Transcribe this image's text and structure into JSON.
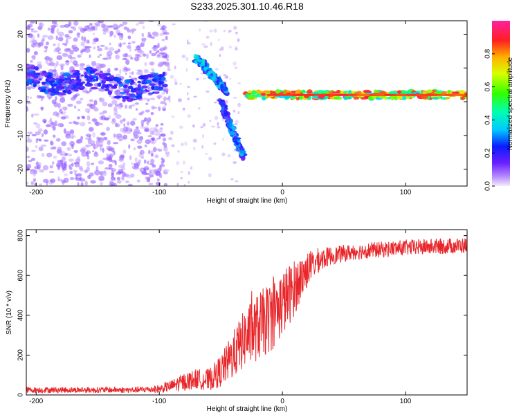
{
  "chart_data": [
    {
      "type": "heatmap",
      "title": "S233.2025.301.10.46.R18",
      "xlabel": "Height of straight line (km)",
      "ylabel": "Frequency (Hz)",
      "xlim": [
        -208,
        150
      ],
      "ylim": [
        -25,
        24
      ],
      "xticks": [
        -200,
        -100,
        0,
        100
      ],
      "yticks": [
        20,
        10,
        0,
        -10,
        -20
      ],
      "colorbar": {
        "label": "Normalized spectral amplitude",
        "range": [
          0,
          1
        ],
        "ticks": [
          "0.0",
          "0.2",
          "0.4",
          "0.6",
          "0.8"
        ]
      },
      "features": [
        {
          "name": "left-noise-band",
          "x_range": [
            -208,
            -95
          ],
          "freq_center": 7,
          "amplitude": 0.3
        },
        {
          "name": "descending-branch-1",
          "x_from": -70,
          "x_to": -45,
          "freq_from": 13,
          "freq_to": 3,
          "amplitude": 0.35
        },
        {
          "name": "descending-branch-2",
          "x_from": -50,
          "x_to": -32,
          "freq_from": 0,
          "freq_to": -16,
          "amplitude": 0.3
        },
        {
          "name": "main-signal-band",
          "x_range": [
            -30,
            150
          ],
          "freq_center": 2,
          "amplitude": 0.95
        }
      ]
    },
    {
      "type": "line",
      "xlabel": "Height of straight line (km)",
      "ylabel": "SNR (10 * v/v)",
      "xlim": [
        -208,
        150
      ],
      "ylim": [
        0,
        830
      ],
      "xticks": [
        -200,
        -100,
        0,
        100
      ],
      "yticks": [
        0,
        200,
        400,
        600,
        800
      ],
      "series": [
        {
          "name": "SNR",
          "color": "#e8262a",
          "x": [
            -208,
            -150,
            -120,
            -100,
            -90,
            -80,
            -70,
            -60,
            -50,
            -40,
            -30,
            -20,
            -10,
            0,
            10,
            20,
            30,
            40,
            60,
            80,
            100,
            120,
            150
          ],
          "y": [
            25,
            25,
            25,
            30,
            45,
            65,
            80,
            75,
            120,
            200,
            290,
            340,
            390,
            460,
            540,
            630,
            680,
            700,
            720,
            730,
            740,
            745,
            750
          ],
          "noise": [
            15,
            15,
            15,
            20,
            30,
            45,
            50,
            55,
            80,
            120,
            150,
            170,
            180,
            170,
            140,
            90,
            60,
            45,
            40,
            40,
            40,
            40,
            40
          ]
        }
      ]
    }
  ]
}
